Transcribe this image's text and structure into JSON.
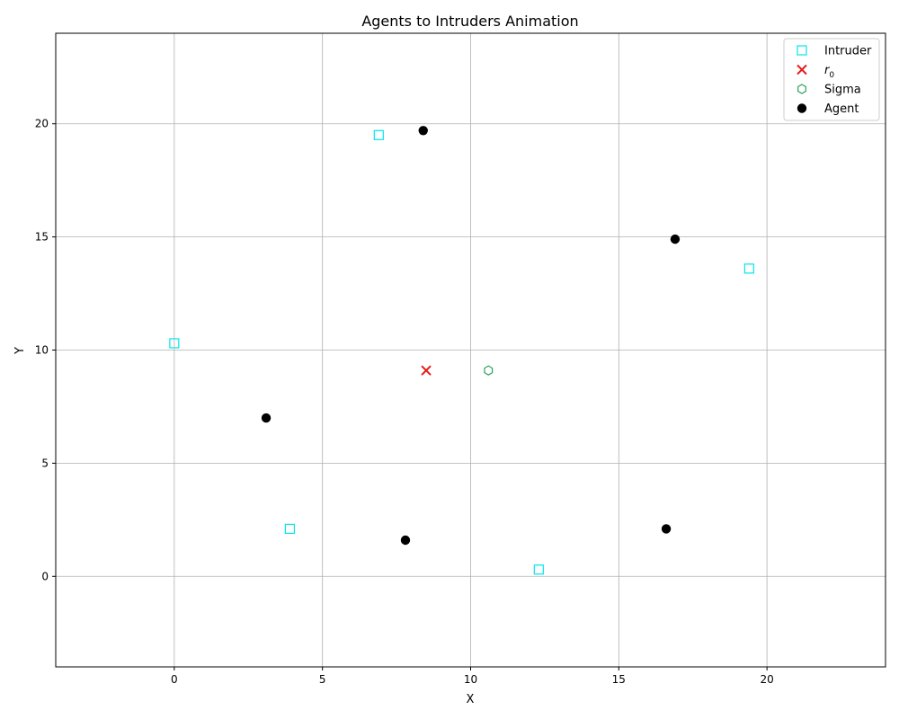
{
  "chart_data": {
    "type": "scatter",
    "title": "Agents to Intruders Animation",
    "xlabel": "X",
    "ylabel": "Y",
    "xlim": [
      -4,
      24
    ],
    "ylim": [
      -4,
      24
    ],
    "xticks": [
      0,
      5,
      10,
      15,
      20
    ],
    "yticks": [
      0,
      5,
      10,
      15,
      20
    ],
    "grid": true,
    "legend_position": "top-right",
    "series": [
      {
        "name": "Intruder",
        "marker": "square-open",
        "color": "#00e5ee",
        "points": [
          [
            6.9,
            19.5
          ],
          [
            19.4,
            13.6
          ],
          [
            0.0,
            10.3
          ],
          [
            3.9,
            2.1
          ],
          [
            12.3,
            0.3
          ]
        ]
      },
      {
        "name": "r_0",
        "marker": "x",
        "color": "#e31a1c",
        "points": [
          [
            8.5,
            9.1
          ]
        ]
      },
      {
        "name": "Sigma",
        "marker": "hexagon-open",
        "color": "#2ca25f",
        "points": [
          [
            10.6,
            9.1
          ]
        ]
      },
      {
        "name": "Agent",
        "marker": "circle-filled",
        "color": "#000000",
        "points": [
          [
            8.4,
            19.7
          ],
          [
            16.9,
            14.9
          ],
          [
            3.1,
            7.0
          ],
          [
            7.8,
            1.6
          ],
          [
            16.6,
            2.1
          ]
        ]
      }
    ]
  }
}
